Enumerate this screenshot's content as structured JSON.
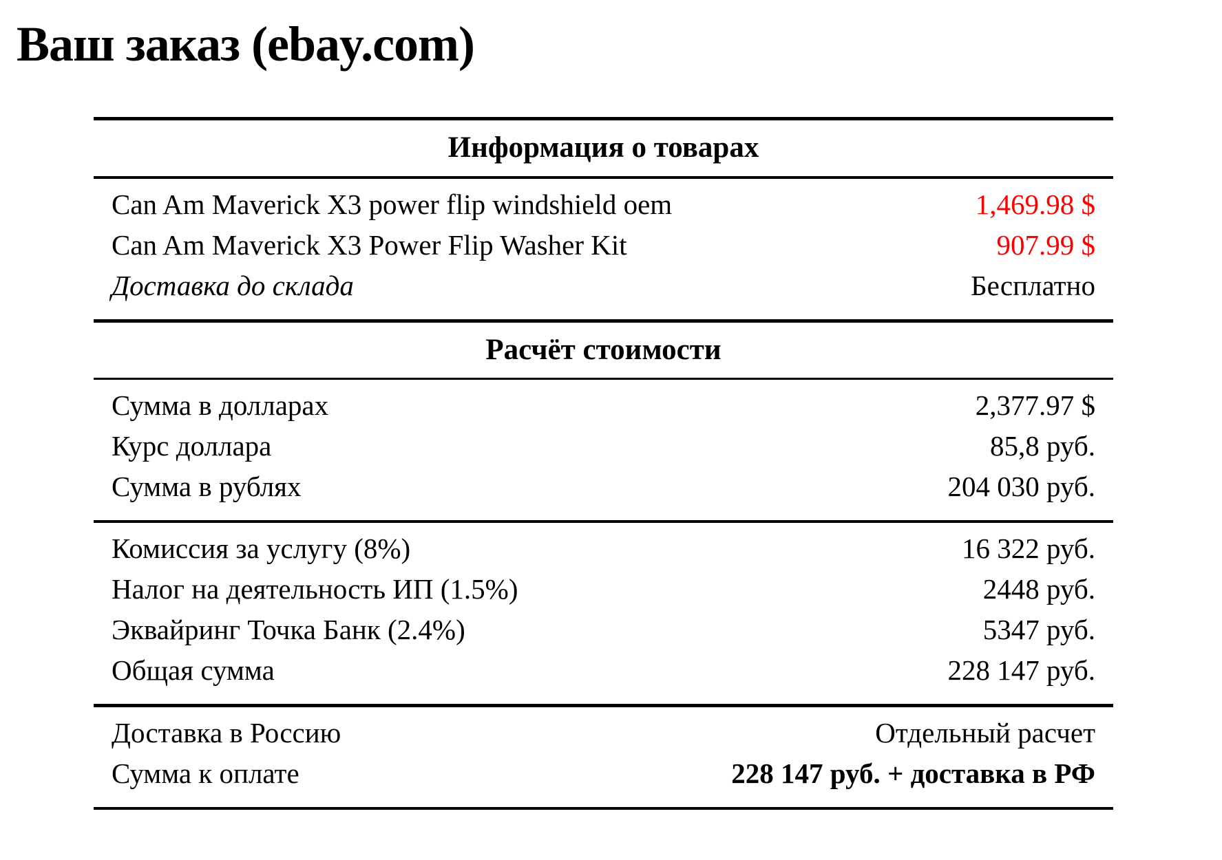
{
  "title": "Ваш заказ (ebay.com)",
  "colors": {
    "background": "#ffffff",
    "text": "#000000",
    "rule": "#000000",
    "price_highlight": "#ff0000"
  },
  "table": {
    "section1": {
      "header": "Информация о товарах",
      "rows": [
        {
          "label": "Can Am Maverick X3 power flip windshield oem",
          "value": "1,469.98 $"
        },
        {
          "label": "Can Am Maverick X3 Power Flip Washer Kit",
          "value": "907.99 $"
        },
        {
          "label": "Доставка до склада",
          "value": "Бесплатно"
        }
      ]
    },
    "section2": {
      "header": "Расчёт стоимости",
      "subtotal_rows": [
        {
          "label": "Сумма в долларах",
          "value": "2,377.97 $"
        },
        {
          "label": "Курс доллара",
          "value": "85,8 руб."
        },
        {
          "label": "Сумма в рублях",
          "value": "204 030 руб."
        }
      ],
      "fee_rows": [
        {
          "label": "Комиссия за услугу (8%)",
          "value": "16 322 руб."
        },
        {
          "label": "Налог на деятельность ИП (1.5%)",
          "value": "2448 руб."
        },
        {
          "label": "Эквайринг Точка Банк (2.4%)",
          "value": "5347 руб."
        },
        {
          "label": "Общая сумма",
          "value": "228 147 руб."
        }
      ],
      "total_rows": [
        {
          "label": "Доставка в Россию",
          "value": "Отдельный расчет"
        },
        {
          "label": "Сумма к оплате",
          "value": "228 147 руб. + доставка в РФ"
        }
      ]
    }
  }
}
